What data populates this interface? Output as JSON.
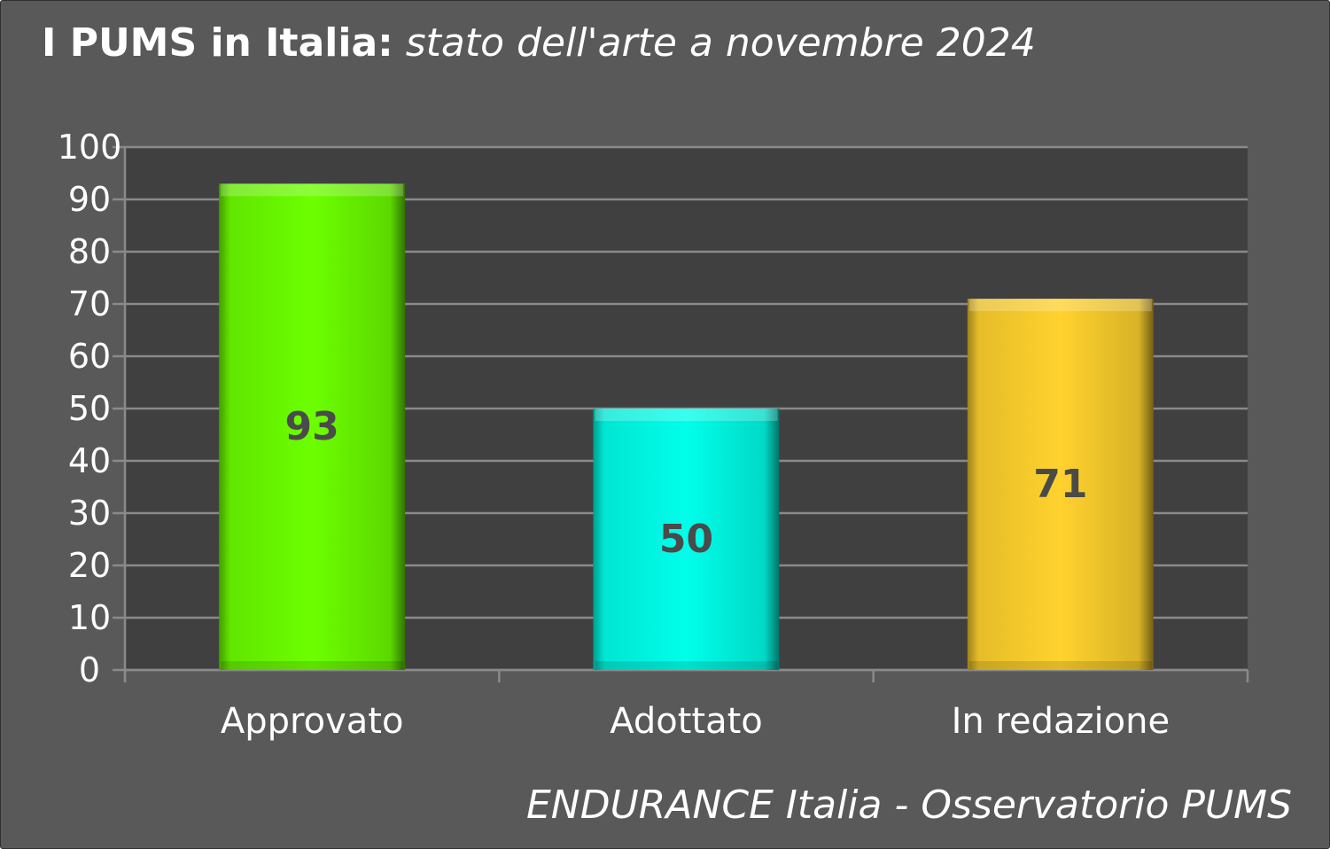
{
  "title": {
    "main": "I PUMS in Italia:",
    "sub": "stato dell'arte a novembre 2024"
  },
  "footer": "ENDURANCE Italia - Osservatorio PUMS",
  "chart_data": {
    "type": "bar",
    "categories": [
      "Approvato",
      "Adottato",
      "In redazione"
    ],
    "values": [
      93,
      50,
      71
    ],
    "data_labels": [
      "93",
      "50",
      "71"
    ],
    "bar_colors": [
      "#6cff00",
      "#00ffea",
      "#ffd22e"
    ],
    "ylim": [
      0,
      100
    ],
    "yticks": [
      0,
      10,
      20,
      30,
      40,
      50,
      60,
      70,
      80,
      90,
      100
    ],
    "grid": true,
    "legend": "none",
    "colors": {
      "background": "#595959",
      "plot_area": "#404040",
      "gridline": "#8a8a8a",
      "text": "#ffffff",
      "data_label": "#4a4a4a"
    }
  }
}
